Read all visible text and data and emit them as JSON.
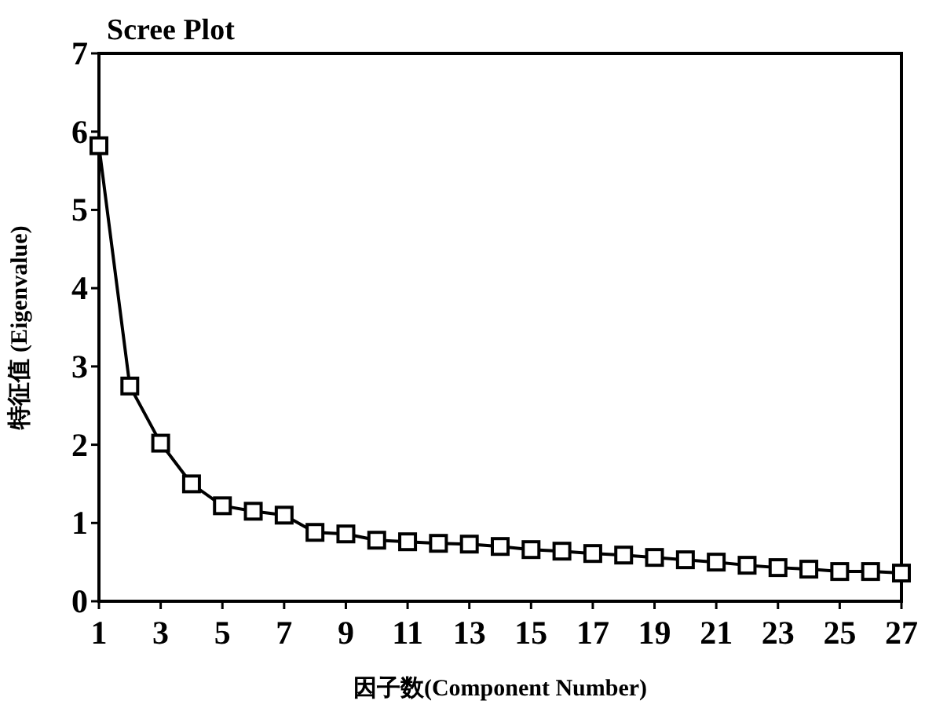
{
  "chart_data": {
    "type": "line",
    "title": "Scree Plot",
    "xlabel": "因子数(Component Number)",
    "ylabel": "特征值 (Eigenvalue)",
    "x": [
      1,
      2,
      3,
      4,
      5,
      6,
      7,
      8,
      9,
      10,
      11,
      12,
      13,
      14,
      15,
      16,
      17,
      18,
      19,
      20,
      21,
      22,
      23,
      24,
      25,
      26,
      27
    ],
    "series": [
      {
        "color": "#000000",
        "values": [
          5.82,
          2.75,
          2.02,
          1.5,
          1.22,
          1.15,
          1.1,
          0.88,
          0.86,
          0.78,
          0.76,
          0.74,
          0.73,
          0.7,
          0.66,
          0.64,
          0.61,
          0.59,
          0.56,
          0.53,
          0.5,
          0.46,
          0.43,
          0.41,
          0.38,
          0.38,
          0.36
        ]
      }
    ],
    "xlim": [
      1,
      27
    ],
    "ylim": [
      0,
      7
    ],
    "xticks": [
      1,
      3,
      5,
      7,
      9,
      11,
      13,
      15,
      17,
      19,
      21,
      23,
      25,
      27
    ],
    "yticks": [
      0,
      1,
      2,
      3,
      4,
      5,
      6,
      7
    ],
    "marker": "square",
    "line_style": "solid"
  }
}
